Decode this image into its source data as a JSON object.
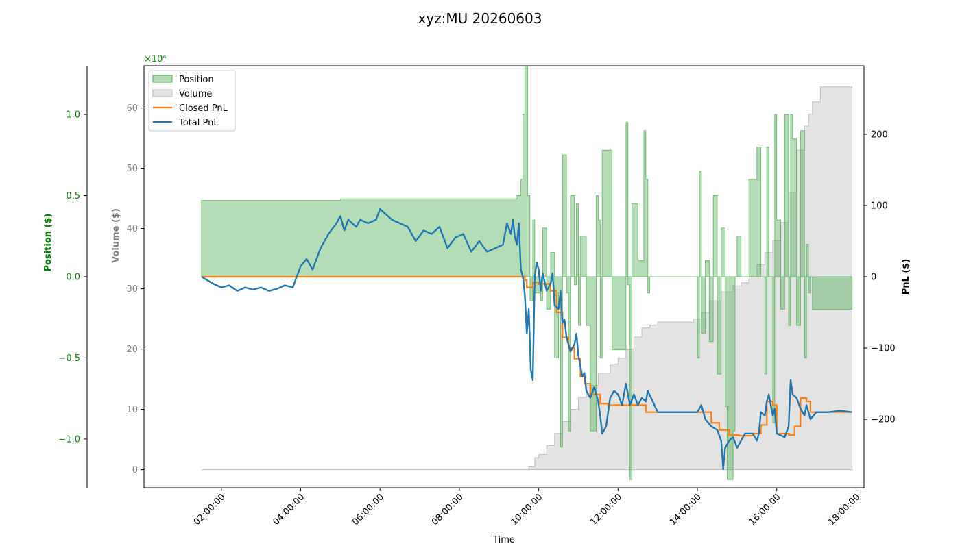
{
  "chart_data": {
    "type": "line",
    "title": "xyz:MU 20260603",
    "xlabel": "Time",
    "x_ticks": [
      "02:00:00",
      "04:00:00",
      "06:00:00",
      "08:00:00",
      "10:00:00",
      "12:00:00",
      "14:00:00",
      "16:00:00",
      "18:00:00"
    ],
    "x_range_hours": [
      0.05,
      18.2
    ],
    "axes": {
      "position": {
        "label": "Position ($)",
        "scale_label": "×10⁴",
        "ylim": [
          -1.3,
          1.3
        ],
        "ticks": [
          -1.0,
          -0.5,
          0.0,
          0.5,
          1.0
        ],
        "tick_labels": [
          "−1.0",
          "−0.5",
          "0.0",
          "0.5",
          "1.0"
        ],
        "color": "#008000"
      },
      "volume": {
        "label": "Volume ($)",
        "ylim": [
          -3,
          67
        ],
        "ticks": [
          0,
          10,
          20,
          30,
          40,
          50,
          60
        ],
        "color": "#808080"
      },
      "pnl": {
        "label": "PnL ($)",
        "ylim": [
          -296,
          296
        ],
        "ticks": [
          -200,
          -100,
          0,
          100,
          200
        ],
        "tick_labels": [
          "−200",
          "−100",
          "0",
          "100",
          "200"
        ],
        "color": "#000000"
      }
    },
    "legend": {
      "placement": "top-left",
      "entries": [
        "Position",
        "Volume",
        "Closed PnL",
        "Total PnL"
      ]
    },
    "series": [
      {
        "name": "Position",
        "kind": "area",
        "axis": "position",
        "color": "#4caf50",
        "x": [
          1.5,
          1.5,
          5.0,
          9.25,
          9.45,
          9.55,
          9.6,
          9.65,
          9.72,
          9.78,
          9.85,
          9.9,
          10.05,
          10.1,
          10.2,
          10.3,
          10.4,
          10.5,
          10.55,
          10.6,
          10.7,
          10.75,
          10.8,
          10.9,
          10.95,
          11.0,
          11.05,
          11.2,
          11.3,
          11.45,
          11.5,
          11.55,
          11.6,
          11.85,
          12.2,
          12.25,
          12.3,
          12.35,
          12.5,
          12.65,
          12.7,
          12.75,
          12.8,
          13.5,
          14.0,
          14.05,
          14.1,
          14.2,
          14.3,
          14.4,
          14.5,
          14.6,
          14.7,
          14.75,
          14.9,
          14.95,
          15.0,
          15.1,
          15.3,
          15.5,
          15.6,
          15.7,
          15.75,
          15.8,
          15.9,
          15.95,
          16.0,
          16.1,
          16.2,
          16.3,
          16.35,
          16.4,
          16.5,
          16.6,
          16.7,
          16.75,
          16.8,
          16.85,
          16.9,
          17.0,
          17.9
        ],
        "y": [
          0,
          0.47,
          0.48,
          0.48,
          0.5,
          0.6,
          1.0,
          1.3,
          0.5,
          -0.15,
          0.35,
          -0.1,
          -0.15,
          0.3,
          -0.2,
          0.15,
          -0.5,
          -0.1,
          -1.05,
          0.75,
          -0.1,
          -0.95,
          0.5,
          -0.05,
          0.45,
          -0.3,
          0.25,
          -0.3,
          -0.95,
          0.5,
          0.35,
          -0.5,
          0.78,
          -0.45,
          0.95,
          -0.05,
          -1.25,
          0.45,
          0.1,
          0.9,
          0.6,
          -0.1,
          0.0,
          0.0,
          -0.5,
          0.65,
          -0.35,
          0.1,
          -0.4,
          0.5,
          -0.6,
          0.3,
          -0.8,
          -1.25,
          -0.95,
          0.0,
          0.25,
          0.0,
          0.6,
          0.8,
          0.0,
          -0.6,
          0.8,
          0.0,
          -0.9,
          1.0,
          0.35,
          -0.2,
          1.0,
          -0.3,
          1.0,
          0.85,
          -0.3,
          0.9,
          -0.5,
          0.2,
          -0.1,
          0.0,
          -0.2,
          -0.2,
          -0.2
        ]
      },
      {
        "name": "Volume",
        "kind": "area",
        "axis": "volume",
        "color": "#c8c8c8",
        "x": [
          1.5,
          9.55,
          9.75,
          9.9,
          10.0,
          10.2,
          10.4,
          10.6,
          10.8,
          11.0,
          11.2,
          11.5,
          11.8,
          12.0,
          12.2,
          12.4,
          12.6,
          12.8,
          13.0,
          13.5,
          13.9,
          14.1,
          14.3,
          14.6,
          14.9,
          15.1,
          15.3,
          15.5,
          15.7,
          15.9,
          16.1,
          16.3,
          16.5,
          16.7,
          16.8,
          16.9,
          17.1,
          17.9
        ],
        "y": [
          0,
          0,
          0.5,
          2,
          2.5,
          4,
          6,
          8,
          10,
          12,
          14,
          16,
          17.5,
          18.5,
          20,
          22,
          23.5,
          24,
          24.5,
          24.5,
          25,
          26,
          28,
          29.5,
          30.5,
          31,
          32,
          34,
          36,
          38,
          41,
          46,
          53,
          57,
          59,
          61,
          63.5,
          63.5
        ]
      },
      {
        "name": "Closed PnL",
        "kind": "line",
        "axis": "pnl",
        "color": "#ff7f0e",
        "x": [
          1.5,
          9.5,
          9.65,
          9.7,
          9.85,
          10.0,
          10.3,
          10.45,
          10.6,
          10.75,
          10.9,
          11.05,
          11.15,
          11.3,
          11.55,
          11.75,
          12.2,
          12.4,
          12.7,
          14.1,
          14.35,
          14.55,
          14.8,
          15.05,
          15.4,
          15.6,
          15.75,
          15.9,
          16.0,
          16.3,
          16.45,
          16.6,
          16.75,
          16.85,
          17.0,
          17.9
        ],
        "y": [
          0,
          0,
          -5,
          -15,
          -8,
          -10,
          -20,
          -50,
          -85,
          -100,
          -115,
          -140,
          -150,
          -165,
          -178,
          -180,
          -180,
          -180,
          -190,
          -190,
          -205,
          -215,
          -222,
          -223,
          -220,
          -208,
          -175,
          -180,
          -220,
          -222,
          -210,
          -170,
          -175,
          -190,
          -190,
          -190
        ]
      },
      {
        "name": "Total PnL",
        "kind": "line",
        "axis": "pnl",
        "color": "#1f77b4",
        "x": [
          1.5,
          1.65,
          1.8,
          2.0,
          2.2,
          2.4,
          2.6,
          2.8,
          3.0,
          3.2,
          3.4,
          3.6,
          3.8,
          4.0,
          4.15,
          4.3,
          4.5,
          4.7,
          4.9,
          5.0,
          5.1,
          5.2,
          5.3,
          5.4,
          5.5,
          5.7,
          5.9,
          6.0,
          6.1,
          6.3,
          6.5,
          6.7,
          6.9,
          7.1,
          7.3,
          7.5,
          7.7,
          7.9,
          8.1,
          8.3,
          8.5,
          8.7,
          8.9,
          9.1,
          9.2,
          9.3,
          9.35,
          9.4,
          9.45,
          9.5,
          9.55,
          9.6,
          9.65,
          9.7,
          9.75,
          9.8,
          9.85,
          9.9,
          9.95,
          10.0,
          10.05,
          10.1,
          10.2,
          10.3,
          10.35,
          10.4,
          10.5,
          10.55,
          10.6,
          10.65,
          10.7,
          10.8,
          10.9,
          10.95,
          11.0,
          11.1,
          11.15,
          11.2,
          11.3,
          11.4,
          11.5,
          11.55,
          11.6,
          11.7,
          11.8,
          11.9,
          12.0,
          12.1,
          12.2,
          12.3,
          12.4,
          12.5,
          12.6,
          12.7,
          12.75,
          13.0,
          13.5,
          14.0,
          14.1,
          14.2,
          14.35,
          14.5,
          14.6,
          14.65,
          14.7,
          14.8,
          14.9,
          15.0,
          15.2,
          15.4,
          15.5,
          15.55,
          15.6,
          15.7,
          15.75,
          15.8,
          15.9,
          15.95,
          16.0,
          16.2,
          16.3,
          16.35,
          16.4,
          16.5,
          16.6,
          16.7,
          16.75,
          16.85,
          17.0,
          17.3,
          17.6,
          17.9
        ],
        "y": [
          0,
          -5,
          -10,
          -15,
          -12,
          -20,
          -15,
          -18,
          -15,
          -20,
          -17,
          -12,
          -15,
          15,
          25,
          10,
          40,
          60,
          75,
          85,
          65,
          80,
          75,
          70,
          80,
          75,
          80,
          95,
          90,
          80,
          75,
          70,
          50,
          65,
          60,
          70,
          40,
          55,
          60,
          35,
          50,
          35,
          40,
          45,
          75,
          60,
          80,
          55,
          45,
          75,
          10,
          0,
          -25,
          -80,
          -45,
          -130,
          -145,
          0,
          20,
          10,
          -20,
          5,
          -20,
          -10,
          5,
          -40,
          -45,
          -20,
          -65,
          -60,
          -85,
          -105,
          -95,
          -80,
          -110,
          -140,
          -135,
          -160,
          -170,
          -155,
          -175,
          -195,
          -220,
          -210,
          -170,
          -160,
          -165,
          -180,
          -150,
          -180,
          -165,
          -180,
          -170,
          -175,
          -160,
          -190,
          -190,
          -190,
          -180,
          -200,
          -210,
          -215,
          -230,
          -270,
          -240,
          -230,
          -225,
          -240,
          -220,
          -220,
          -230,
          -220,
          -190,
          -195,
          -175,
          -165,
          -195,
          -185,
          -220,
          -225,
          -210,
          -145,
          -165,
          -170,
          -185,
          -195,
          -180,
          -200,
          -190,
          -190,
          -188,
          -190
        ]
      }
    ]
  }
}
